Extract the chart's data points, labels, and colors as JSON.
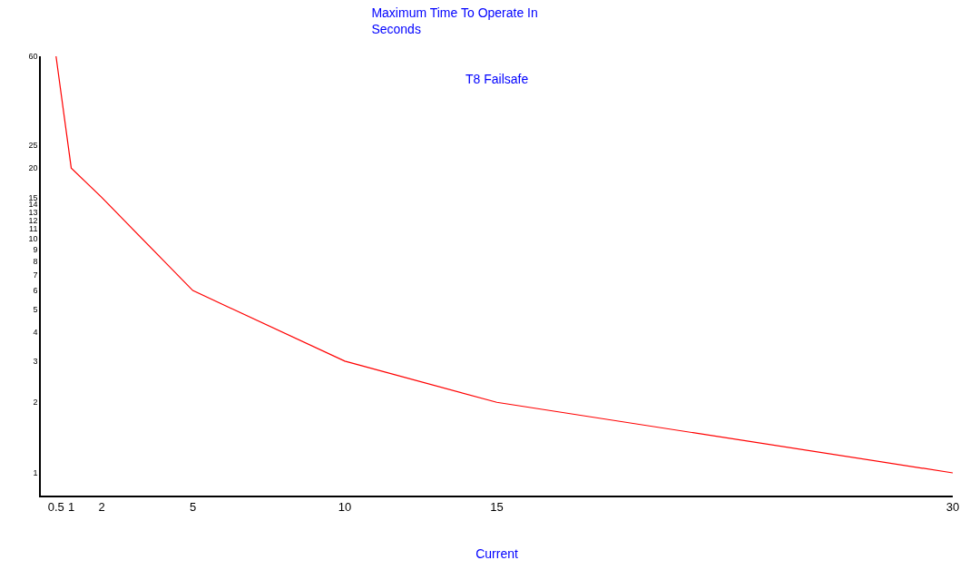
{
  "chart_data": {
    "type": "line",
    "title": "Maximum Time To Operate In\nSeconds",
    "subtitle": "T8 Failsafe",
    "xlabel": "Current",
    "x": [
      0.5,
      1,
      2,
      5,
      10,
      15,
      30
    ],
    "series": [
      {
        "color": "#ff0000",
        "values": [
          60,
          20,
          15,
          6,
          3,
          2,
          1
        ]
      }
    ],
    "xlim": [
      0,
      30
    ],
    "xticks": [
      0.5,
      1,
      2,
      5,
      10,
      15,
      30
    ],
    "ylim": [
      0.8,
      60
    ],
    "log": "y",
    "yticks": [
      1,
      2,
      3,
      4,
      5,
      6,
      7,
      8,
      9,
      10,
      11,
      12,
      13,
      14,
      15,
      20,
      25,
      60
    ],
    "legend": false,
    "marker": "none",
    "line_style": "solid"
  }
}
